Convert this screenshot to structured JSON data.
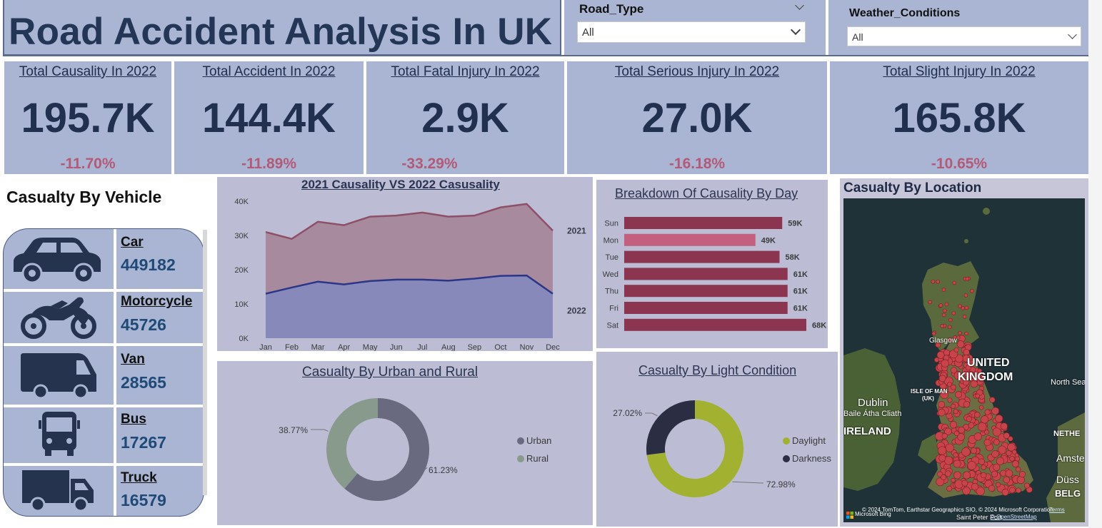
{
  "header": {
    "title": "Road Accident Analysis In UK"
  },
  "filters": {
    "road_type": {
      "label": "Road_Type",
      "value": "All"
    },
    "weather": {
      "label": "Weather_Conditions",
      "value": "All"
    }
  },
  "kpis": [
    {
      "title": "Total Causality In 2022",
      "value": "195.7K",
      "change": "-11.70%"
    },
    {
      "title": "Total Accident In 2022",
      "value": "144.4K",
      "change": "-11.89%"
    },
    {
      "title": "Total Fatal Injury In 2022",
      "value": "2.9K",
      "change": "-33.29%"
    },
    {
      "title": "Total Serious Injury In 2022",
      "value": "27.0K",
      "change": "-16.18%"
    },
    {
      "title": "Total Slight Injury In 2022",
      "value": "165.8K",
      "change": "-10.65%"
    }
  ],
  "vehicles": {
    "heading": "Casualty By Vehicle",
    "items": [
      {
        "name": "Car",
        "count": "449182",
        "icon": "car-icon"
      },
      {
        "name": "Motorcycle",
        "count": "45726",
        "icon": "motorcycle-icon"
      },
      {
        "name": "Van",
        "count": "28565",
        "icon": "van-icon"
      },
      {
        "name": "Bus",
        "count": "17267",
        "icon": "bus-icon"
      },
      {
        "name": "Truck",
        "count": "16579",
        "icon": "truck-icon"
      }
    ]
  },
  "location": {
    "title": "Casualty By Location",
    "labels": [
      "UNITED",
      "KINGDOM",
      "Glasgow",
      "ISLE OF MAN",
      "(UK)",
      "Dublin",
      "Baile Átha Cliath",
      "IRELAND",
      "North Sea",
      "NETHE",
      "Amste",
      "Düss",
      "BELG",
      "Saint Peter Port"
    ],
    "attribution": "© 2024 TomTom, Earthstar Geographics SIO, © 2024 Microsoft Corporation",
    "attribution_links": [
      "Terms",
      "© OpenStreetMap"
    ],
    "provider": "Microsoft Bing"
  },
  "colors": {
    "panel_blue": "#a9b5d2",
    "panel_lavender": "#bcbdd5",
    "kpi_value": "#22304f",
    "kpi_change": "#b35a78",
    "series_2021": "#8e5068",
    "series_2022": "#2b3688",
    "bar": "#8b3550",
    "bar_highlight": "#c2607e",
    "urban": "#696a80",
    "rural": "#879a8c",
    "daylight": "#a2b12f",
    "darkness": "#2b2d43"
  },
  "chart_data": [
    {
      "type": "area",
      "title": "2021 Causality VS 2022 Casusality",
      "x": [
        "Jan",
        "Feb",
        "Mar",
        "Apr",
        "May",
        "Jun",
        "Jul",
        "Aug",
        "Sep",
        "Oct",
        "Nov",
        "Dec"
      ],
      "ylim": [
        0,
        40000
      ],
      "yticks": [
        "0K",
        "10K",
        "20K",
        "30K",
        "40K"
      ],
      "series": [
        {
          "name": "2021",
          "values": [
            31000,
            29000,
            34000,
            33000,
            35500,
            35800,
            36700,
            35500,
            35800,
            38200,
            39200,
            31400
          ]
        },
        {
          "name": "2022",
          "values": [
            13000,
            14800,
            16500,
            15700,
            16700,
            17100,
            17100,
            16800,
            17400,
            18200,
            18300,
            13000
          ]
        }
      ]
    },
    {
      "type": "bar",
      "orientation": "horizontal",
      "title": "Breakdown Of Causality By Day",
      "categories": [
        "Sun",
        "Mon",
        "Tue",
        "Wed",
        "Thu",
        "Fri",
        "Sat"
      ],
      "values": [
        59000,
        49000,
        58000,
        61000,
        61000,
        61000,
        68000
      ],
      "labels": [
        "59K",
        "49K",
        "58K",
        "61K",
        "61K",
        "61K",
        "68K"
      ],
      "highlight_index": 1
    },
    {
      "type": "pie",
      "donut": true,
      "title": "Casualty By Urban and Rural",
      "categories": [
        "Urban",
        "Rural"
      ],
      "values": [
        61.23,
        38.77
      ],
      "labels": [
        "61.23%",
        "38.77%"
      ],
      "legend": "right"
    },
    {
      "type": "pie",
      "donut": true,
      "title": "Casualty By Light Condition",
      "categories": [
        "Daylight",
        "Darkness"
      ],
      "values": [
        72.98,
        27.02
      ],
      "labels": [
        "72.98%",
        "27.02%"
      ],
      "legend": "right"
    }
  ]
}
